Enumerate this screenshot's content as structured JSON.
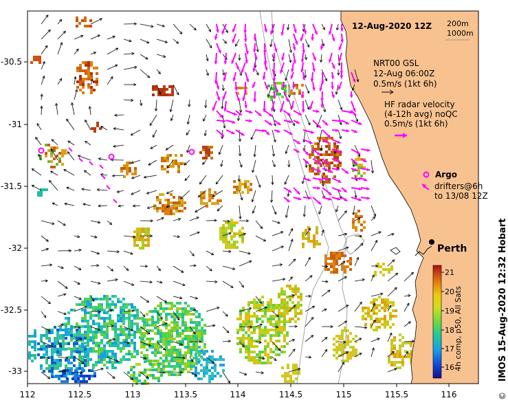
{
  "title": "12-Aug-2020 12Z",
  "depth_legend": {
    "line1": "200m",
    "line2": "1000m"
  },
  "map": {
    "lon_range": [
      112,
      116.3
    ],
    "lat_range": [
      -33.12,
      -29.98
    ],
    "lon_ticks": [
      "112",
      "112.5",
      "113",
      "113.5",
      "114",
      "114.5",
      "115",
      "115.5",
      "116"
    ],
    "lat_ticks": [
      "-30.5",
      "-31",
      "-31.5",
      "-32",
      "-32.5",
      "-33"
    ]
  },
  "legend": {
    "gsl": {
      "line1": "NRT00 GSL",
      "line2": "12-Aug 06:00Z",
      "line3": "0.5m/s (1kt 6h)"
    },
    "hf": {
      "line1": "HF radar velocity",
      "line2": "(4-12h avg) noQC",
      "line3": "0.5m/s (1kt 6h)"
    },
    "argo": "Argo",
    "drifters": {
      "line1": "drifters@6h",
      "line2": "to 13/08 12Z"
    }
  },
  "city": "Perth",
  "colorbar": {
    "ticks": [
      "21",
      "20",
      "19",
      "18",
      "17",
      "16"
    ],
    "label": "4h comp, p50, All Sats"
  },
  "credit": "IMOS 15-Aug-2020 12:32 Hobart",
  "copyright": "©",
  "colors": {
    "land": "#f8c290",
    "hf_arrow": "#ff00ff",
    "gsl_arrow": "#000000"
  }
}
